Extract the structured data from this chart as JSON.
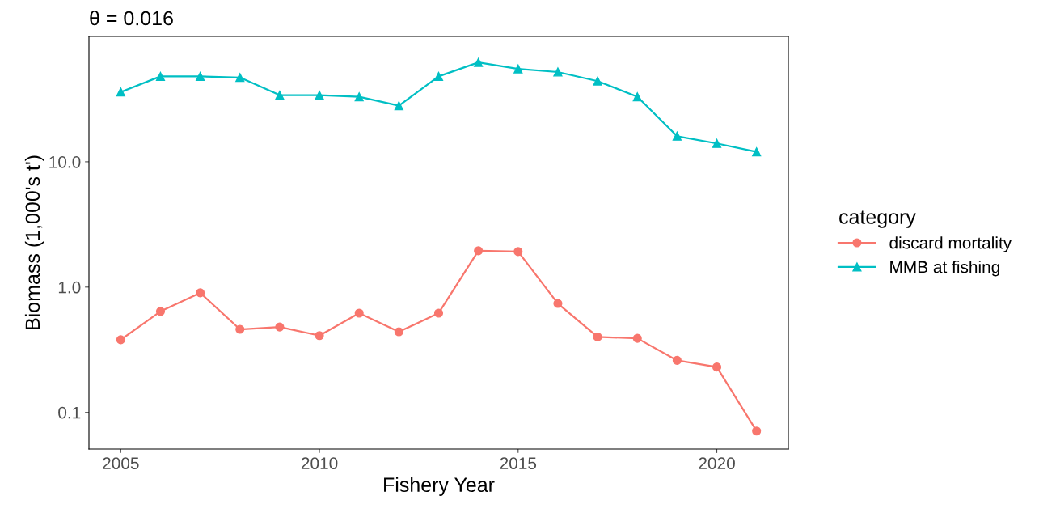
{
  "chart_data": {
    "type": "line",
    "title": "θ = 0.016",
    "xlabel": "Fishery Year",
    "ylabel": "Biomass (1,000's t')",
    "legend_title": "category",
    "legend": "right",
    "grid": false,
    "log": "y",
    "x": [
      2005,
      2006,
      2007,
      2008,
      2009,
      2010,
      2011,
      2012,
      2013,
      2014,
      2015,
      2016,
      2017,
      2018,
      2019,
      2020,
      2021
    ],
    "series": [
      {
        "name": "discard mortality",
        "color": "#f8766d",
        "marker": "circle",
        "values": [
          0.38,
          0.64,
          0.9,
          0.46,
          0.48,
          0.41,
          0.62,
          0.44,
          0.62,
          1.95,
          1.92,
          0.74,
          0.4,
          0.39,
          0.26,
          0.23,
          0.071
        ]
      },
      {
        "name": "MMB at fishing",
        "color": "#00bfc4",
        "marker": "triangle",
        "values": [
          36,
          48,
          48,
          47,
          34,
          34,
          33,
          28,
          48,
          62,
          55,
          52,
          44,
          33,
          16,
          14,
          12
        ]
      }
    ],
    "xlim": [
      2004.2,
      2021.8
    ],
    "xticks": [
      2005,
      2010,
      2015,
      2020
    ],
    "ylim": [
      0.051,
      100
    ],
    "yticks": [
      {
        "value": 0.1,
        "label": "0.1"
      },
      {
        "value": 1,
        "label": "1.0"
      },
      {
        "value": 10,
        "label": "10.0"
      }
    ]
  }
}
